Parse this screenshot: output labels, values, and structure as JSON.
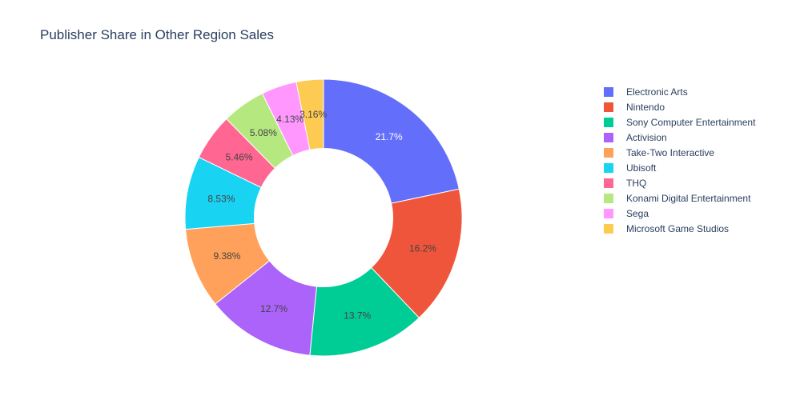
{
  "title": "Publisher Share in Other Region Sales",
  "legend_position": "right",
  "chart_data": {
    "type": "pie",
    "hole": 0.5,
    "direction": "clockwise",
    "sort": "descending",
    "title": "Publisher Share in Other Region Sales",
    "categories": [
      "Electronic Arts",
      "Nintendo",
      "Sony Computer Entertainment",
      "Activision",
      "Take-Two Interactive",
      "Ubisoft",
      "THQ",
      "Konami Digital Entertainment",
      "Sega",
      "Microsoft Game Studios"
    ],
    "values": [
      21.7,
      16.2,
      13.7,
      12.7,
      9.38,
      8.53,
      5.46,
      5.08,
      4.13,
      3.16
    ],
    "labels": [
      "21.7%",
      "16.2%",
      "13.7%",
      "12.7%",
      "9.38%",
      "8.53%",
      "5.46%",
      "5.08%",
      "4.13%",
      "3.16%"
    ],
    "colors": [
      "#636efa",
      "#EF553B",
      "#00cc96",
      "#ab63fa",
      "#FFA15A",
      "#19d3f3",
      "#FF6692",
      "#B6E880",
      "#FF97FF",
      "#FECB52"
    ],
    "label_colors": [
      "#ffffff",
      "#444444",
      "#444444",
      "#444444",
      "#444444",
      "#444444",
      "#444444",
      "#444444",
      "#444444",
      "#444444"
    ]
  }
}
